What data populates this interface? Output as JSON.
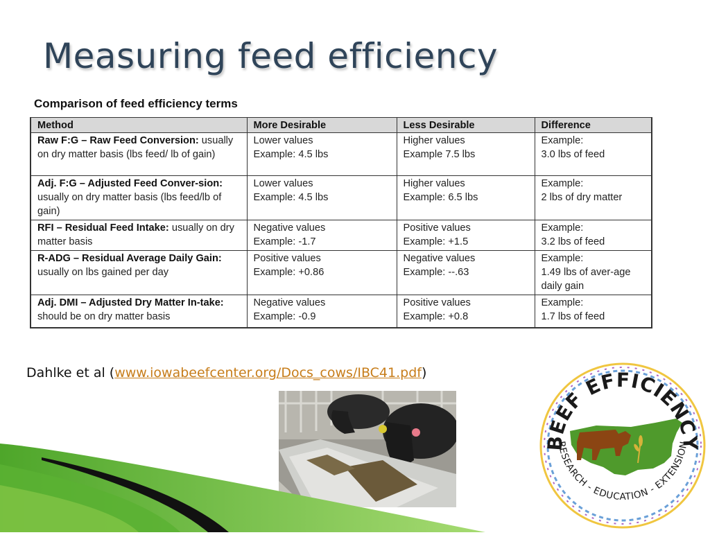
{
  "slide": {
    "title": "Measuring feed efficiency"
  },
  "table": {
    "caption": "Comparison of feed efficiency terms",
    "headers": [
      "Method",
      "More Desirable",
      "Less Desirable",
      "Difference"
    ],
    "rows": [
      {
        "method_name": "Raw F:G – Raw Feed Conversion:",
        "method_desc": "usually on dry matter basis (lbs feed/ lb of gain)",
        "more": [
          "Lower values",
          "Example: 4.5 lbs"
        ],
        "less": [
          "Higher values",
          "Example 7.5 lbs"
        ],
        "diff": [
          "Example:",
          "3.0 lbs of feed"
        ]
      },
      {
        "method_name": "Adj. F:G – Adjusted Feed Conver-sion:",
        "method_desc": "usually on dry matter basis (lbs feed/lb of gain)",
        "more": [
          "Lower values",
          "Example: 4.5 lbs"
        ],
        "less": [
          "Higher values",
          "Example: 6.5 lbs"
        ],
        "diff": [
          "Example:",
          "2 lbs of dry matter"
        ]
      },
      {
        "method_name": "RFI – Residual Feed Intake:",
        "method_desc": "usually on dry matter basis",
        "more": [
          "Negative values",
          "Example: -1.7"
        ],
        "less": [
          "Positive values",
          "Example: +1.5"
        ],
        "diff": [
          "Example:",
          "3.2 lbs of feed"
        ]
      },
      {
        "method_name": "R-ADG – Residual Average Daily Gain:",
        "method_desc": "usually on lbs gained per day",
        "more": [
          "Positive values",
          "Example: +0.86"
        ],
        "less": [
          "Negative values",
          "Example: --.63"
        ],
        "diff": [
          "Example:",
          "1.49 lbs of aver-age daily gain"
        ]
      },
      {
        "method_name": "Adj. DMI – Adjusted Dry Matter In-take:",
        "method_desc": "should be on dry matter basis",
        "more": [
          "Negative values",
          "Example: -0.9"
        ],
        "less": [
          "Positive values",
          "Example: +0.8"
        ],
        "diff": [
          "Example:",
          "1.7 lbs of feed"
        ]
      }
    ]
  },
  "citation": {
    "author": "Dahlke et al",
    "open": "(",
    "link_text": "www.iowabeefcenter.org/Docs_cows/IBC41.pdf",
    "close": ")"
  },
  "logo": {
    "top_text": "BEEF EFFICIENCY",
    "bottom_text": "RESEARCH - EDUCATION - EXTENSION"
  },
  "colors": {
    "title": "#2f4459",
    "link": "#c77d1a",
    "header_bg": "#d8d8d8",
    "logo_green": "#4f9a2c",
    "logo_cow": "#8b4513",
    "swoosh_green": "#7cc243"
  }
}
